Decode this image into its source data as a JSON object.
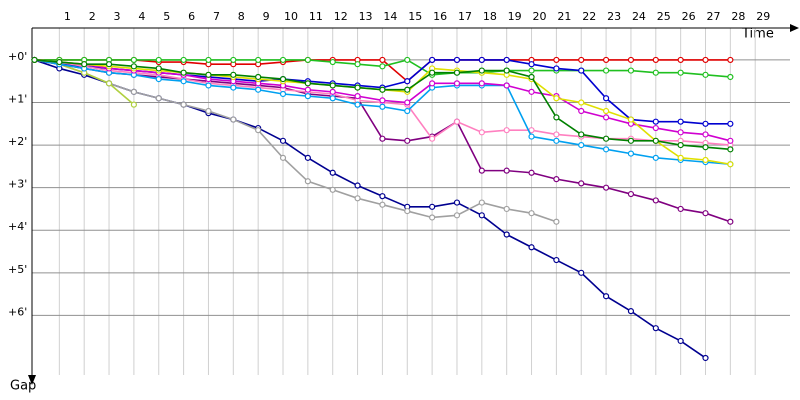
{
  "chart_data": {
    "type": "line",
    "x_label": "Time",
    "y_label": "Gap",
    "x": [
      0,
      1,
      2,
      3,
      4,
      5,
      6,
      7,
      8,
      9,
      10,
      11,
      12,
      13,
      14,
      15,
      16,
      17,
      18,
      19,
      20,
      21,
      22,
      23,
      24,
      25,
      26,
      27,
      28,
      29
    ],
    "xlim": [
      -0.1,
      30.4
    ],
    "xticks": [
      1,
      2,
      3,
      4,
      5,
      6,
      7,
      8,
      9,
      10,
      11,
      12,
      13,
      14,
      15,
      16,
      17,
      18,
      19,
      20,
      21,
      22,
      23,
      24,
      25,
      26,
      27,
      28,
      29
    ],
    "ylim": [
      -0.75,
      7.4
    ],
    "yticks": [
      {
        "value": 0,
        "label": "+0'"
      },
      {
        "value": 1,
        "label": "+1'"
      },
      {
        "value": 2,
        "label": "+2'"
      },
      {
        "value": 3,
        "label": "+3'"
      },
      {
        "value": 4,
        "label": "+4'"
      },
      {
        "value": 5,
        "label": "+5'"
      },
      {
        "value": 6,
        "label": "+6'"
      }
    ],
    "y_inverted": true,
    "grid": true,
    "series": [
      {
        "color": "#e00000",
        "values": [
          0,
          0,
          0,
          0,
          0,
          0.05,
          0.05,
          0.1,
          0.1,
          0.1,
          0.05,
          0,
          0,
          0,
          0,
          0.5,
          0,
          0,
          0,
          0,
          0,
          0,
          0,
          0,
          0,
          0,
          0,
          0,
          0,
          null
        ]
      },
      {
        "color": "#20c020",
        "values": [
          0,
          0,
          0,
          0,
          0,
          0,
          0,
          0,
          0,
          0,
          0,
          0,
          0.05,
          0.1,
          0.15,
          0,
          0.35,
          0.3,
          0.3,
          0.25,
          0.25,
          0.25,
          0.25,
          0.25,
          0.25,
          0.3,
          0.3,
          0.35,
          0.4,
          null
        ]
      },
      {
        "color": "#0000d0",
        "values": [
          0,
          0.1,
          0.15,
          0.2,
          0.25,
          0.3,
          0.35,
          0.4,
          0.45,
          0.5,
          0.45,
          0.5,
          0.55,
          0.6,
          0.65,
          0.5,
          0,
          0,
          0,
          0,
          0.1,
          0.2,
          0.25,
          0.9,
          1.4,
          1.45,
          1.45,
          1.5,
          1.5,
          null
        ]
      },
      {
        "color": "#000090",
        "values": [
          0,
          0.2,
          0.35,
          0.55,
          0.75,
          0.9,
          1.05,
          1.25,
          1.4,
          1.6,
          1.9,
          2.3,
          2.65,
          2.95,
          3.2,
          3.45,
          3.45,
          3.35,
          3.65,
          4.1,
          4.4,
          4.7,
          5.0,
          5.55,
          5.9,
          6.3,
          6.6,
          7.0,
          null,
          null
        ]
      },
      {
        "color": "#a0a0a0",
        "values": [
          0,
          0.1,
          0.3,
          0.55,
          0.75,
          0.9,
          1.05,
          1.2,
          1.4,
          1.65,
          2.3,
          2.85,
          3.05,
          3.25,
          3.4,
          3.55,
          3.7,
          3.65,
          3.35,
          3.5,
          3.6,
          3.8,
          null,
          null,
          null,
          null,
          null,
          null,
          null,
          null
        ]
      },
      {
        "color": "#b0d040",
        "values": [
          0,
          0.1,
          0.3,
          0.55,
          1.05,
          null,
          null,
          null,
          null,
          null,
          null,
          null,
          null,
          null,
          null,
          null,
          null,
          null,
          null,
          null,
          null,
          null,
          null,
          null,
          null,
          null,
          null,
          null,
          null,
          null
        ]
      },
      {
        "color": "#800080",
        "values": [
          0,
          0.1,
          0.2,
          0.3,
          0.35,
          0.4,
          0.45,
          0.5,
          0.55,
          0.6,
          0.65,
          0.8,
          0.85,
          0.9,
          1.85,
          1.9,
          1.8,
          1.45,
          2.6,
          2.6,
          2.65,
          2.8,
          2.9,
          3.0,
          3.15,
          3.3,
          3.5,
          3.6,
          3.8,
          null
        ]
      },
      {
        "color": "#ff80c0",
        "values": [
          0,
          0.05,
          0.15,
          0.25,
          0.3,
          0.35,
          0.45,
          0.55,
          0.6,
          0.65,
          0.7,
          0.75,
          0.8,
          0.95,
          1.0,
          1.05,
          1.85,
          1.45,
          1.7,
          1.65,
          1.65,
          1.75,
          1.8,
          1.85,
          1.85,
          1.9,
          1.9,
          1.95,
          2.0,
          null
        ]
      },
      {
        "color": "#00a0f0",
        "values": [
          0,
          0.1,
          0.2,
          0.3,
          0.35,
          0.45,
          0.5,
          0.6,
          0.65,
          0.7,
          0.8,
          0.85,
          0.9,
          1.05,
          1.1,
          1.2,
          0.65,
          0.6,
          0.6,
          0.6,
          1.8,
          1.9,
          2.0,
          2.1,
          2.2,
          2.3,
          2.35,
          2.4,
          2.45,
          null
        ]
      },
      {
        "color": "#d000d0",
        "values": [
          0,
          0.05,
          0.1,
          0.2,
          0.25,
          0.3,
          0.35,
          0.45,
          0.5,
          0.55,
          0.6,
          0.7,
          0.75,
          0.85,
          0.95,
          1.0,
          0.55,
          0.55,
          0.55,
          0.6,
          0.75,
          0.85,
          1.2,
          1.35,
          1.5,
          1.6,
          1.7,
          1.75,
          1.9,
          null
        ]
      },
      {
        "color": "#e0e000",
        "values": [
          0,
          0.05,
          0.1,
          0.15,
          0.2,
          0.25,
          0.3,
          0.35,
          0.4,
          0.45,
          0.5,
          0.55,
          0.6,
          0.65,
          0.7,
          0.75,
          0.2,
          0.25,
          0.3,
          0.35,
          0.45,
          0.9,
          1.0,
          1.2,
          1.4,
          1.9,
          2.3,
          2.35,
          2.45,
          null
        ]
      },
      {
        "color": "#008000",
        "values": [
          0,
          0.05,
          0.1,
          0.1,
          0.15,
          0.2,
          0.3,
          0.35,
          0.35,
          0.4,
          0.45,
          0.55,
          0.6,
          0.65,
          0.7,
          0.7,
          0.3,
          0.3,
          0.25,
          0.25,
          0.4,
          1.35,
          1.75,
          1.85,
          1.9,
          1.9,
          2.0,
          2.05,
          2.1,
          null
        ]
      }
    ]
  }
}
